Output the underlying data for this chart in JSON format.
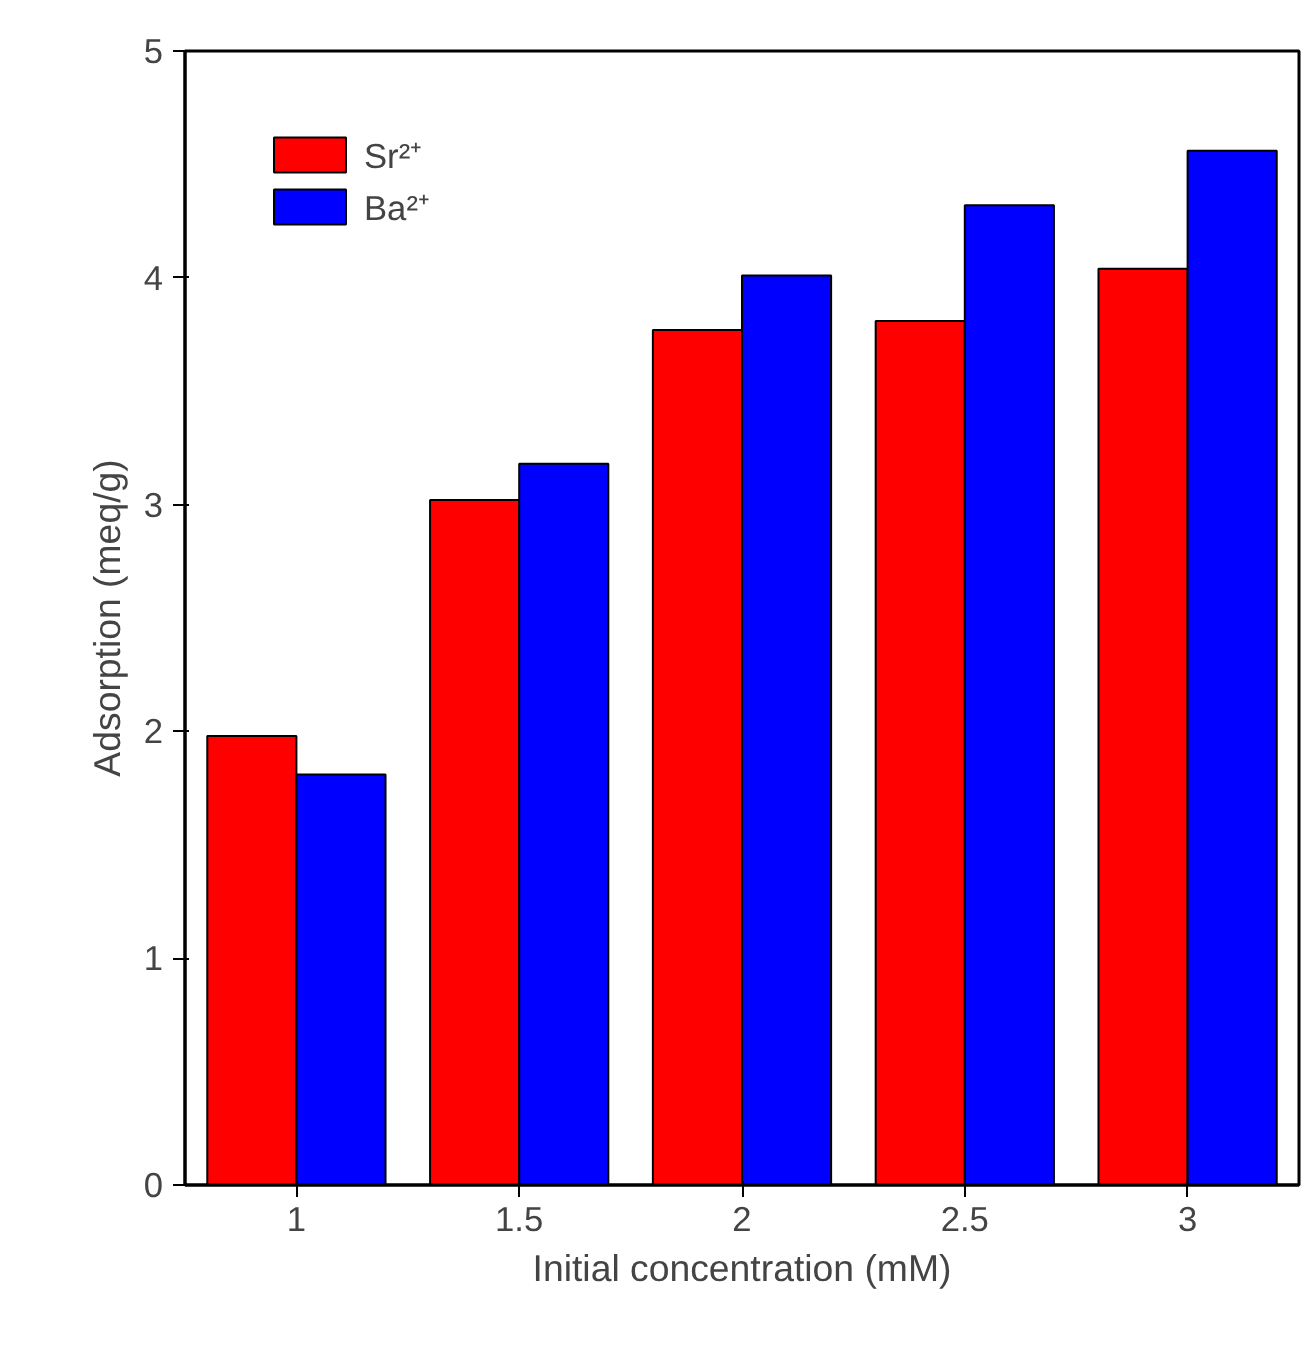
{
  "chart_data": {
    "type": "bar",
    "xlabel": "Initial concentration (mM)",
    "ylabel": "Adsorption (meq/g)",
    "x": [
      1,
      1.5,
      2,
      2.5,
      3
    ],
    "series": [
      {
        "name": "Sr²⁺",
        "color": "#ff0000",
        "values": [
          1.98,
          3.02,
          3.77,
          3.81,
          4.04
        ]
      },
      {
        "name": "Ba²⁺",
        "color": "#0000ff",
        "values": [
          1.81,
          3.18,
          4.01,
          4.32,
          4.56
        ]
      }
    ],
    "xlim": [
      0.75,
      3.25
    ],
    "xticks": [
      1,
      1.5,
      2,
      2.5,
      3
    ],
    "ylim": [
      0,
      5
    ],
    "yticks": [
      0,
      1,
      2,
      3,
      4,
      5
    ],
    "grid": false,
    "legend": "top left"
  }
}
